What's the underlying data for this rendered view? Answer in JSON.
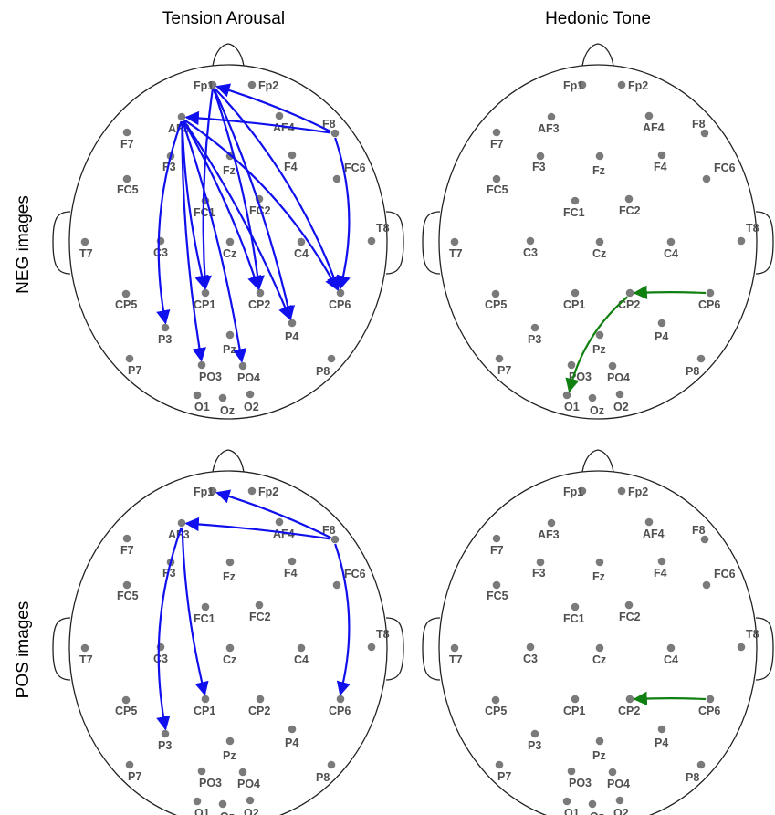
{
  "column_titles": [
    "Tension Arousal",
    "Hedonic Tone"
  ],
  "row_titles": [
    "NEG images",
    "POS images"
  ],
  "colors": {
    "electrode": "#7a7a7a",
    "head": "#222222",
    "arousal_arrow": "#1010ee",
    "hedonic_arrow": "#108010",
    "label": "#505050"
  },
  "electrodes": [
    {
      "name": "Fp1"
    },
    {
      "name": "Fp2"
    },
    {
      "name": "AF3"
    },
    {
      "name": "AF4"
    },
    {
      "name": "F7"
    },
    {
      "name": "F8"
    },
    {
      "name": "F3"
    },
    {
      "name": "Fz"
    },
    {
      "name": "F4"
    },
    {
      "name": "FC5"
    },
    {
      "name": "FC6"
    },
    {
      "name": "FC1"
    },
    {
      "name": "FC2"
    },
    {
      "name": "T7"
    },
    {
      "name": "T8"
    },
    {
      "name": "C3"
    },
    {
      "name": "Cz"
    },
    {
      "name": "C4"
    },
    {
      "name": "CP5"
    },
    {
      "name": "CP1"
    },
    {
      "name": "CP2"
    },
    {
      "name": "CP6"
    },
    {
      "name": "P7"
    },
    {
      "name": "P3"
    },
    {
      "name": "Pz"
    },
    {
      "name": "P4"
    },
    {
      "name": "P8"
    },
    {
      "name": "PO3"
    },
    {
      "name": "PO4"
    },
    {
      "name": "O1"
    },
    {
      "name": "Oz"
    },
    {
      "name": "O2"
    }
  ],
  "panels": [
    {
      "id": "neg-arousal",
      "row": "NEG images",
      "column": "Tension Arousal",
      "arrow_color": "arousal_arrow",
      "connections": [
        {
          "from": "F8",
          "to": "Fp1"
        },
        {
          "from": "F8",
          "to": "AF3"
        },
        {
          "from": "F8",
          "to": "CP6"
        },
        {
          "from": "AF3",
          "to": "P3"
        },
        {
          "from": "AF3",
          "to": "CP1"
        },
        {
          "from": "AF3",
          "to": "PO3"
        },
        {
          "from": "AF3",
          "to": "CP2"
        },
        {
          "from": "AF3",
          "to": "PO4"
        },
        {
          "from": "AF3",
          "to": "P4"
        },
        {
          "from": "AF3",
          "to": "CP6"
        },
        {
          "from": "Fp1",
          "to": "CP1"
        },
        {
          "from": "Fp1",
          "to": "CP2"
        },
        {
          "from": "Fp1",
          "to": "P4"
        },
        {
          "from": "Fp1",
          "to": "CP6"
        }
      ]
    },
    {
      "id": "neg-hedonic",
      "row": "NEG images",
      "column": "Hedonic Tone",
      "arrow_color": "hedonic_arrow",
      "connections": [
        {
          "from": "CP6",
          "to": "CP2"
        },
        {
          "from": "CP2",
          "to": "O1"
        }
      ]
    },
    {
      "id": "pos-arousal",
      "row": "POS images",
      "column": "Tension Arousal",
      "arrow_color": "arousal_arrow",
      "connections": [
        {
          "from": "F8",
          "to": "Fp1"
        },
        {
          "from": "F8",
          "to": "AF3"
        },
        {
          "from": "F8",
          "to": "CP6"
        },
        {
          "from": "AF3",
          "to": "P3"
        },
        {
          "from": "AF3",
          "to": "CP1"
        }
      ]
    },
    {
      "id": "pos-hedonic",
      "row": "POS images",
      "column": "Hedonic Tone",
      "arrow_color": "hedonic_arrow",
      "connections": [
        {
          "from": "CP6",
          "to": "CP2"
        }
      ]
    }
  ]
}
